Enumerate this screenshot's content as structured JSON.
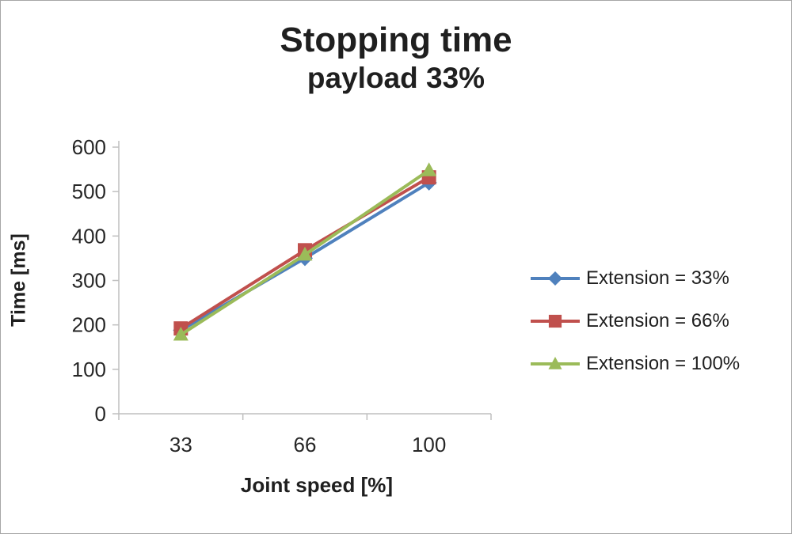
{
  "chart_data": {
    "type": "line",
    "title": "Stopping time",
    "subtitle": "payload 33%",
    "xlabel": "Joint speed [%]",
    "ylabel": "Time [ms]",
    "categories": [
      "33",
      "66",
      "100"
    ],
    "ylim": [
      0,
      600
    ],
    "ytick_step": 100,
    "grid": false,
    "legend_position": "right",
    "axis_color": "#bfbfbf",
    "tick_label_color": "#262626",
    "series": [
      {
        "name": "Extension = 33%",
        "color": "#4f81bd",
        "marker": "diamond",
        "values": [
          188,
          350,
          520
        ]
      },
      {
        "name": "Extension = 66%",
        "color": "#c0504d",
        "marker": "square",
        "values": [
          192,
          368,
          532
        ]
      },
      {
        "name": "Extension = 100%",
        "color": "#9bbb59",
        "marker": "triangle",
        "values": [
          178,
          358,
          548
        ]
      }
    ]
  }
}
